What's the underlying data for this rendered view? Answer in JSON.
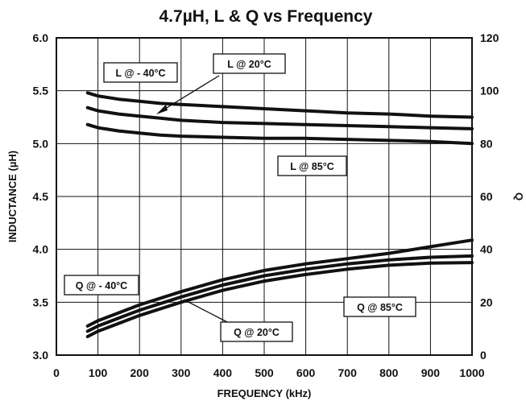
{
  "chart_data": {
    "type": "line",
    "title": "4.7µH, L & Q vs Frequency",
    "xlabel": "FREQUENCY (kHz)",
    "ylabel_left": "INDUCTANCE (µH)",
    "ylabel_right": "Q",
    "xlim": [
      0,
      1000
    ],
    "ylim_left": [
      3.0,
      6.0
    ],
    "ylim_right": [
      0,
      120
    ],
    "x_ticks": [
      "0",
      "100",
      "200",
      "300",
      "400",
      "500",
      "600",
      "700",
      "800",
      "900",
      "1000"
    ],
    "y_left_ticks": [
      "3.0",
      "3.5",
      "4.0",
      "4.5",
      "5.0",
      "5.5",
      "6.0"
    ],
    "y_right_ticks": [
      "0",
      "20",
      "40",
      "60",
      "80",
      "100",
      "120"
    ],
    "grid": true,
    "series": [
      {
        "name": "L @ - 40°C",
        "axis": "left",
        "x": [
          75,
          100,
          150,
          200,
          250,
          300,
          400,
          500,
          600,
          700,
          800,
          900,
          1000
        ],
        "y": [
          5.48,
          5.45,
          5.42,
          5.4,
          5.38,
          5.37,
          5.35,
          5.33,
          5.31,
          5.29,
          5.28,
          5.26,
          5.25
        ]
      },
      {
        "name": "L @ 20°C",
        "axis": "left",
        "x": [
          75,
          100,
          150,
          200,
          250,
          300,
          400,
          500,
          600,
          700,
          800,
          900,
          1000
        ],
        "y": [
          5.34,
          5.31,
          5.28,
          5.26,
          5.24,
          5.22,
          5.2,
          5.19,
          5.18,
          5.17,
          5.16,
          5.15,
          5.14
        ]
      },
      {
        "name": "L @ 85°C",
        "axis": "left",
        "x": [
          75,
          100,
          150,
          200,
          250,
          300,
          400,
          500,
          600,
          700,
          800,
          900,
          1000
        ],
        "y": [
          5.18,
          5.15,
          5.12,
          5.1,
          5.08,
          5.07,
          5.06,
          5.05,
          5.05,
          5.04,
          5.03,
          5.02,
          5.0
        ]
      },
      {
        "name": "Q @ - 40°C",
        "axis": "right",
        "x": [
          75,
          100,
          150,
          200,
          300,
          400,
          500,
          600,
          700,
          800,
          900,
          1000
        ],
        "y": [
          11,
          13,
          16,
          19,
          24,
          28.5,
          32,
          34.5,
          36.5,
          38.5,
          41,
          43.5
        ]
      },
      {
        "name": "Q @ 20°C",
        "axis": "right",
        "x": [
          75,
          100,
          150,
          200,
          300,
          400,
          500,
          600,
          700,
          800,
          900,
          1000
        ],
        "y": [
          9,
          11,
          14,
          17,
          22,
          26.5,
          30,
          32.5,
          34.5,
          36,
          37,
          37.5
        ]
      },
      {
        "name": "Q @ 85°C",
        "axis": "right",
        "x": [
          75,
          100,
          150,
          200,
          300,
          400,
          500,
          600,
          700,
          800,
          900,
          1000
        ],
        "y": [
          7,
          9,
          12,
          15,
          20,
          24.5,
          28,
          30.5,
          32.5,
          34,
          34.8,
          35
        ]
      }
    ],
    "annotations": [
      {
        "text": "L @ - 40°C",
        "series": "L @ - 40°C"
      },
      {
        "text": "L @ 20°C",
        "series": "L @ 20°C"
      },
      {
        "text": "L @ 85°C",
        "series": "L @ 85°C"
      },
      {
        "text": "Q @ - 40°C",
        "series": "Q @ - 40°C"
      },
      {
        "text": "Q @ 20°C",
        "series": "Q @ 20°C"
      },
      {
        "text": "Q @ 85°C",
        "series": "Q @ 85°C"
      }
    ]
  }
}
